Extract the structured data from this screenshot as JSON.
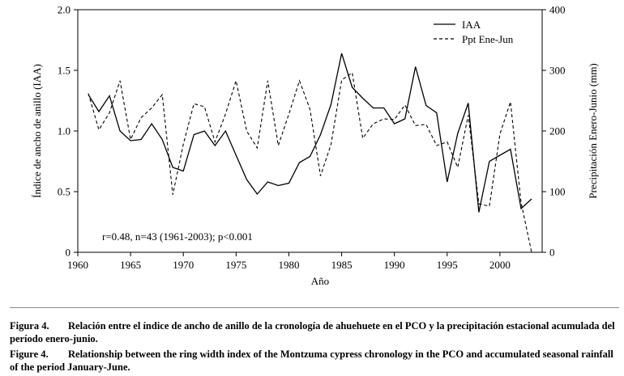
{
  "chart_data": {
    "type": "line",
    "xlabel": "Año",
    "ylabel_left": "Índice de ancho de anillo (IAA)",
    "ylabel_right": "Precipitación Enero-Junio (mm)",
    "xlim": [
      1960,
      2004
    ],
    "ylim_left": [
      0,
      2.0
    ],
    "ylim_right": [
      0,
      400
    ],
    "x_ticks": [
      "1960",
      "1965",
      "1970",
      "1975",
      "1980",
      "1985",
      "1990",
      "1995",
      "2000"
    ],
    "y_left_ticks": [
      "0",
      "0.5",
      "1.0",
      "1.5",
      "2.0"
    ],
    "y_right_ticks": [
      "0",
      "100",
      "200",
      "300",
      "400"
    ],
    "annotation": "r=0.48, n=43 (1961-2003); p<0.001",
    "legend_position": "top-right",
    "series": [
      {
        "name": "IAA",
        "axis": "left",
        "style": "solid",
        "x": [
          1961,
          1962,
          1963,
          1964,
          1965,
          1966,
          1967,
          1968,
          1969,
          1970,
          1971,
          1972,
          1973,
          1974,
          1975,
          1976,
          1977,
          1978,
          1979,
          1980,
          1981,
          1982,
          1983,
          1984,
          1985,
          1986,
          1987,
          1988,
          1989,
          1990,
          1991,
          1992,
          1993,
          1994,
          1995,
          1996,
          1997,
          1998,
          1999,
          2000,
          2001,
          2002,
          2003
        ],
        "values": [
          1.3,
          1.16,
          1.29,
          1.0,
          0.92,
          0.93,
          1.06,
          0.93,
          0.7,
          0.67,
          0.97,
          1.0,
          0.88,
          1.0,
          0.8,
          0.6,
          0.48,
          0.58,
          0.55,
          0.57,
          0.74,
          0.79,
          0.97,
          1.22,
          1.64,
          1.36,
          1.27,
          1.19,
          1.19,
          1.06,
          1.1,
          1.53,
          1.21,
          1.15,
          0.58,
          0.98,
          1.23,
          0.33,
          0.75,
          0.8,
          0.85,
          0.36,
          0.44
        ]
      },
      {
        "name": "Ppt Ene-Jun",
        "axis": "right",
        "style": "dashed",
        "x": [
          1961,
          1962,
          1963,
          1964,
          1965,
          1966,
          1967,
          1968,
          1969,
          1970,
          1971,
          1972,
          1973,
          1974,
          1975,
          1976,
          1977,
          1978,
          1979,
          1980,
          1981,
          1982,
          1983,
          1984,
          1985,
          1986,
          1987,
          1988,
          1989,
          1990,
          1991,
          1992,
          1993,
          1994,
          1995,
          1996,
          1997,
          1998,
          1999,
          2000,
          2001,
          2002,
          2003
        ],
        "values": [
          262,
          202,
          230,
          283,
          186,
          222,
          238,
          260,
          95,
          178,
          245,
          240,
          182,
          228,
          283,
          200,
          172,
          283,
          176,
          228,
          283,
          236,
          126,
          178,
          284,
          296,
          188,
          212,
          220,
          219,
          243,
          209,
          211,
          176,
          182,
          140,
          226,
          80,
          76,
          195,
          248,
          82,
          0
        ]
      }
    ]
  },
  "captions": [
    {
      "label": "Figura 4.",
      "text": "Relación entre el índice de ancho de anillo de la cronología de ahuehuete en el PCO y la precipitación estacional acumulada del período enero-junio."
    },
    {
      "label": "Figure 4.",
      "text": "Relationship between the ring width index of the Montzuma cypress chronology in the PCO and accumulated seasonal rainfall of the period January-June."
    }
  ]
}
